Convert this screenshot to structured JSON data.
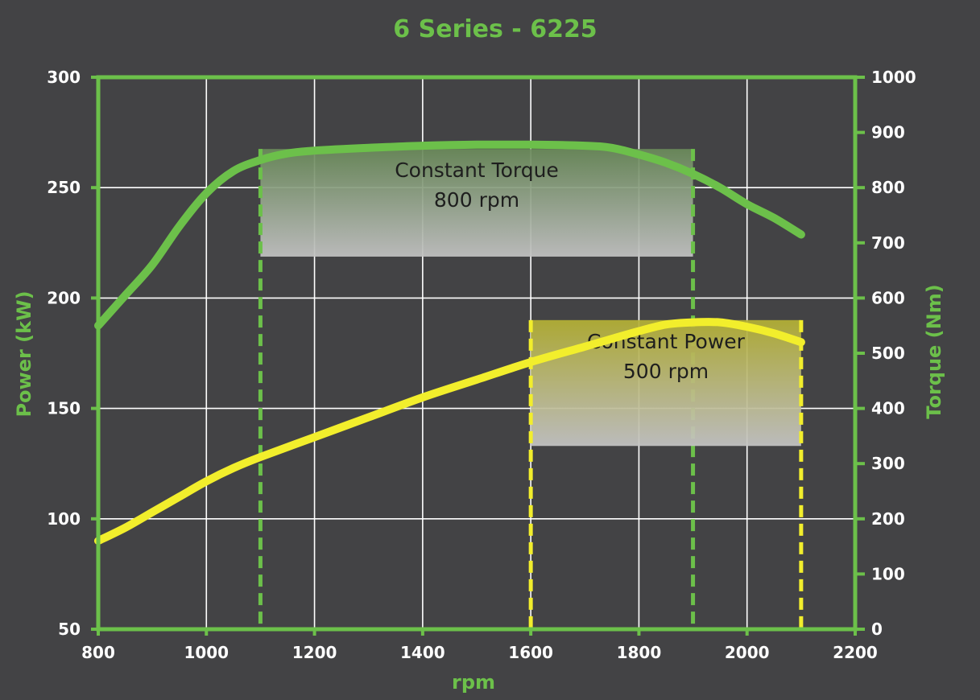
{
  "chart_data": {
    "type": "line",
    "title": "6 Series - 6225",
    "xlabel": "rpm",
    "ylabel_left": "Power (kW)",
    "ylabel_right": "Torque (Nm)",
    "xlim": [
      800,
      2200
    ],
    "ylim_left": [
      50,
      300
    ],
    "ylim_right": [
      0,
      1000
    ],
    "xticks": [
      "800",
      "1000",
      "1200",
      "1400",
      "1600",
      "1800",
      "2000",
      "2200"
    ],
    "yticks_left": [
      "50",
      "100",
      "150",
      "200",
      "250",
      "300"
    ],
    "yticks_right": [
      "0",
      "100",
      "200",
      "300",
      "400",
      "500",
      "600",
      "700",
      "800",
      "900",
      "1000"
    ],
    "grid": true,
    "colors": {
      "background": "#434345",
      "torque": "#6cc04a",
      "power": "#f2ee2c",
      "grid": "#ffffff",
      "text": "#ffffff",
      "annotation_text": "#1e1e1e"
    },
    "series": [
      {
        "axis": "right",
        "color": "#6cc04a",
        "x": [
          800,
          850,
          900,
          950,
          1000,
          1050,
          1100,
          1150,
          1200,
          1300,
          1400,
          1500,
          1600,
          1700,
          1750,
          1800,
          1850,
          1900,
          1950,
          2000,
          2050,
          2100
        ],
        "y": [
          550,
          605,
          660,
          730,
          790,
          830,
          850,
          862,
          867,
          872,
          876,
          878,
          878,
          876,
          872,
          860,
          845,
          825,
          800,
          770,
          745,
          715
        ]
      },
      {
        "axis": "left",
        "color": "#f2ee2c",
        "x": [
          800,
          850,
          900,
          950,
          1000,
          1050,
          1100,
          1200,
          1300,
          1400,
          1500,
          1600,
          1700,
          1800,
          1850,
          1900,
          1950,
          2000,
          2050,
          2100
        ],
        "y": [
          90,
          96,
          103,
          110,
          117,
          123,
          128,
          137,
          146,
          155,
          163,
          171,
          178,
          185,
          188,
          189,
          189,
          187,
          184,
          180
        ]
      }
    ],
    "bands": [
      {
        "label": "Constant Torque",
        "sublabel": "800 rpm",
        "x_start": 1100,
        "x_end": 1900,
        "axis": "right",
        "y_top": 870,
        "y_bottom": 675,
        "color": "#6cc04a"
      },
      {
        "label": "Constant Power",
        "sublabel": "500 rpm",
        "x_start": 1600,
        "x_end": 2100,
        "axis": "left",
        "y_top": 190,
        "y_bottom": 133,
        "color": "#f2ee2c"
      }
    ]
  }
}
